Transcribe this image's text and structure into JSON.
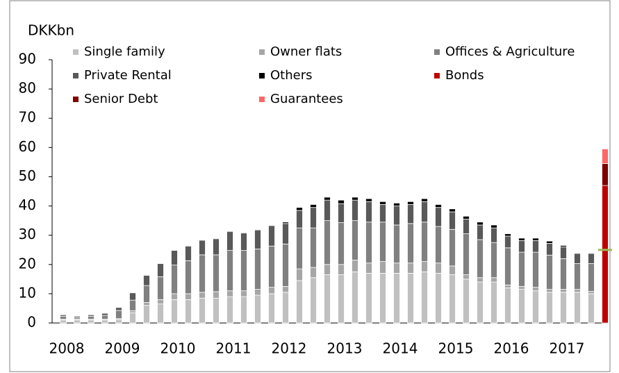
{
  "chart_data": {
    "type": "stacked_bar",
    "ylabel": "DKKbn",
    "x": [
      2008,
      2008.25,
      2008.5,
      2008.75,
      2009,
      2009.25,
      2009.5,
      2009.75,
      2010,
      2010.25,
      2010.5,
      2010.75,
      2011,
      2011.25,
      2011.5,
      2011.75,
      2012,
      2012.25,
      2012.5,
      2012.75,
      2013,
      2013.25,
      2013.5,
      2013.75,
      2014,
      2014.25,
      2014.5,
      2014.75,
      2015,
      2015.25,
      2015.5,
      2015.75,
      2016,
      2016.25,
      2016.5,
      2016.75,
      2017,
      2017.25,
      2017.5,
      2017.75
    ],
    "xlim": [
      2007.8,
      2017.8
    ],
    "xticks": [
      2008,
      2009,
      2010,
      2011,
      2012,
      2013,
      2014,
      2015,
      2016,
      2017
    ],
    "ylim": [
      0,
      90
    ],
    "yticks": [
      0,
      10,
      20,
      30,
      40,
      50,
      60,
      70,
      80,
      90
    ],
    "legend": "top",
    "series": [
      {
        "name": "Single family",
        "color": "#c0c0c0",
        "values": [
          1,
          1,
          1,
          1,
          1.2,
          3.5,
          6,
          6.5,
          8,
          8,
          8.5,
          8.5,
          9,
          9,
          9.5,
          10,
          10.5,
          14.5,
          15.5,
          16.5,
          16.5,
          17.5,
          17,
          17,
          17,
          17,
          17.5,
          17,
          16.5,
          15,
          14,
          14,
          12,
          11.5,
          11,
          10.5,
          10.5,
          10.5,
          10,
          null
        ]
      },
      {
        "name": "Owner flats",
        "color": "#a6a6a6",
        "values": [
          0.3,
          0.3,
          0.3,
          0.3,
          0.3,
          0.7,
          1,
          1.5,
          2,
          2,
          2,
          2.2,
          2,
          2,
          2,
          2.2,
          2,
          4,
          3.5,
          3.5,
          3.5,
          4,
          3.5,
          4,
          3.5,
          3.5,
          3.5,
          3.5,
          3,
          1.5,
          1.5,
          1.5,
          1,
          1,
          1.2,
          1,
          1,
          1,
          0.8,
          null
        ]
      },
      {
        "name": "Offices & Agriculture",
        "color": "#808080",
        "values": [
          1,
          0.5,
          1,
          1.3,
          2.8,
          3.6,
          5.8,
          7.8,
          9.8,
          11.3,
          12.8,
          12.6,
          13.8,
          13.8,
          13.8,
          14.1,
          14.5,
          14,
          13.5,
          15,
          14.3,
          13.5,
          14,
          13.5,
          13,
          13.5,
          13.5,
          12.5,
          12.5,
          14,
          13,
          12,
          12.7,
          11.7,
          12,
          11.7,
          10.5,
          8.8,
          9.5,
          null
        ]
      },
      {
        "name": "Private Rental",
        "color": "#595959",
        "values": [
          0.5,
          0.5,
          0.5,
          0.7,
          1,
          2.5,
          3.5,
          4.5,
          5,
          5,
          5,
          5.5,
          6.5,
          6,
          6.5,
          7,
          7,
          6,
          7,
          7,
          6.5,
          7,
          7,
          6,
          6.5,
          6.5,
          7,
          6.5,
          6,
          5,
          5,
          5,
          4,
          4,
          4,
          4,
          4,
          3.5,
          3.5,
          null
        ]
      },
      {
        "name": "Others",
        "color": "#000000",
        "values": [
          0.2,
          0.2,
          0.2,
          0.2,
          0.2,
          0.2,
          0.2,
          0.2,
          0.2,
          0.2,
          0.2,
          0.2,
          0.2,
          0.2,
          0.2,
          0.2,
          0.5,
          1,
          1,
          1,
          1.2,
          1,
          1,
          1,
          1,
          1,
          1,
          1,
          1,
          1,
          1,
          1,
          0.8,
          0.8,
          0.8,
          0.8,
          0.5,
          0.2,
          0.2,
          null
        ]
      },
      {
        "name": "Bonds",
        "color": "#c00000",
        "values": [
          null,
          null,
          null,
          null,
          null,
          null,
          null,
          null,
          null,
          null,
          null,
          null,
          null,
          null,
          null,
          null,
          null,
          null,
          null,
          null,
          null,
          null,
          null,
          null,
          null,
          null,
          null,
          null,
          null,
          null,
          null,
          null,
          null,
          null,
          null,
          null,
          null,
          null,
          null,
          47
        ]
      },
      {
        "name": "Senior Debt",
        "color": "#7f0000",
        "values": [
          null,
          null,
          null,
          null,
          null,
          null,
          null,
          null,
          null,
          null,
          null,
          null,
          null,
          null,
          null,
          null,
          null,
          null,
          null,
          null,
          null,
          null,
          null,
          null,
          null,
          null,
          null,
          null,
          null,
          null,
          null,
          null,
          null,
          null,
          null,
          null,
          null,
          null,
          null,
          7.5
        ]
      },
      {
        "name": "Guarantees",
        "color": "#ff6666",
        "values": [
          null,
          null,
          null,
          null,
          null,
          null,
          null,
          null,
          null,
          null,
          null,
          null,
          null,
          null,
          null,
          null,
          null,
          null,
          null,
          null,
          null,
          null,
          null,
          null,
          null,
          null,
          null,
          null,
          null,
          null,
          null,
          null,
          null,
          null,
          null,
          null,
          null,
          null,
          null,
          5
        ]
      }
    ],
    "marker": {
      "x": 2017.75,
      "value": 25,
      "color": "#9bbb59"
    }
  }
}
